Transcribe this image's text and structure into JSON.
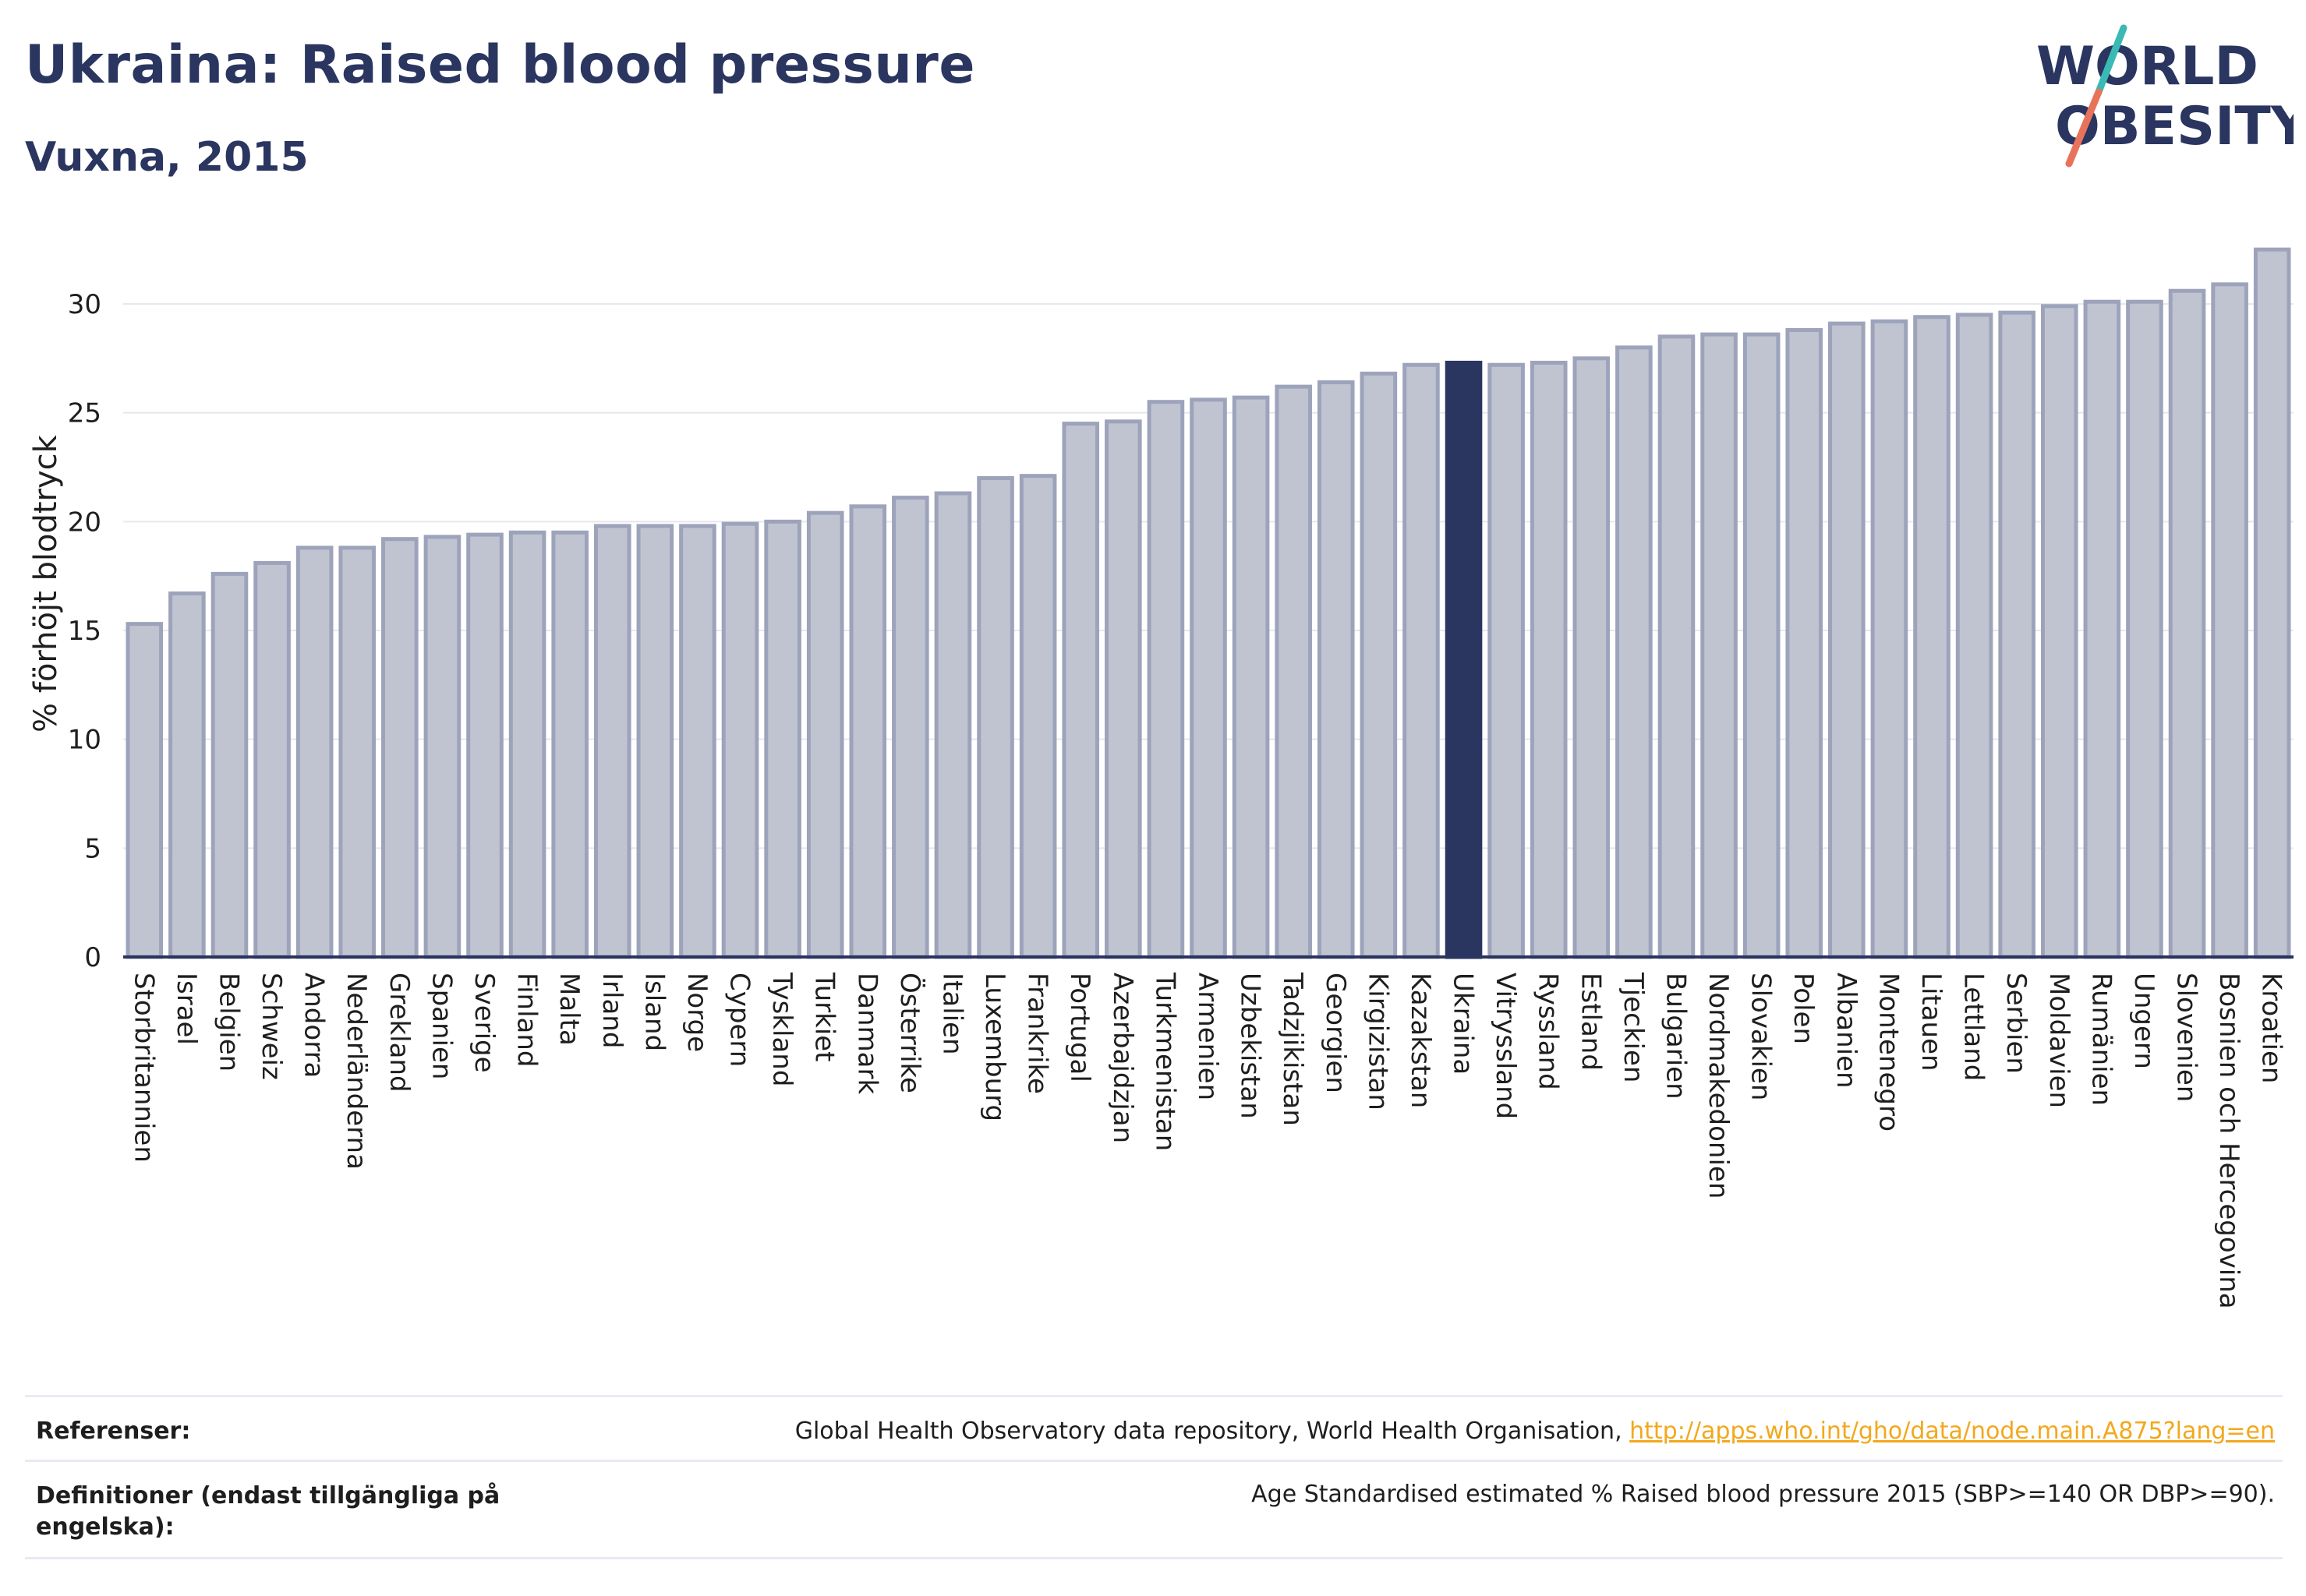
{
  "header": {
    "title": "Ukraina: Raised blood pressure",
    "subtitle": "Vuxna, 2015"
  },
  "logo": {
    "line1": "WORLD",
    "line2": "OBESITY"
  },
  "colors": {
    "bar_fill": "#c0c4d1",
    "bar_edge": "#9da3ba",
    "highlight": "#2a3560",
    "grid": "#e6e8ee",
    "axis": "#2a3560",
    "logo_text": "#2a3560",
    "logo_teal": "#3ab9b5",
    "logo_coral": "#e8735a",
    "link": "#f2a81d"
  },
  "chart_data": {
    "type": "bar",
    "title": "Ukraina: Raised blood pressure",
    "subtitle": "Vuxna, 2015",
    "ylabel": "% förhöjt blodtryck",
    "ylim": [
      0,
      32.7
    ],
    "yticks": [
      0,
      5,
      10,
      15,
      20,
      25,
      30
    ],
    "grid": true,
    "highlight": "Ukraina",
    "categories": [
      "Storbritannien",
      "Israel",
      "Belgien",
      "Schweiz",
      "Andorra",
      "Nederländerna",
      "Grekland",
      "Spanien",
      "Sverige",
      "Finland",
      "Malta",
      "Irland",
      "Island",
      "Norge",
      "Cypern",
      "Tyskland",
      "Turkiet",
      "Danmark",
      "Österrike",
      "Italien",
      "Luxemburg",
      "Frankrike",
      "Portugal",
      "Azerbajdzjan",
      "Turkmenistan",
      "Armenien",
      "Uzbekistan",
      "Tadzjikistan",
      "Georgien",
      "Kirgizistan",
      "Kazakstan",
      "Ukraina",
      "Vitryssland",
      "Ryssland",
      "Estland",
      "Tjeckien",
      "Bulgarien",
      "Nordmakedonien",
      "Slovakien",
      "Polen",
      "Albanien",
      "Montenegro",
      "Litauen",
      "Lettland",
      "Serbien",
      "Moldavien",
      "Rumänien",
      "Ungern",
      "Slovenien",
      "Bosnien och Hercegovina",
      "Kroatien"
    ],
    "values": [
      15.3,
      16.7,
      17.6,
      18.1,
      18.8,
      18.8,
      19.2,
      19.3,
      19.4,
      19.5,
      19.5,
      19.8,
      19.8,
      19.8,
      19.9,
      20.0,
      20.4,
      20.7,
      21.1,
      21.3,
      22.0,
      22.1,
      24.5,
      24.6,
      25.5,
      25.6,
      25.7,
      26.2,
      26.4,
      26.8,
      27.2,
      27.3,
      27.2,
      27.3,
      27.5,
      28.0,
      28.5,
      28.6,
      28.6,
      28.8,
      29.1,
      29.2,
      29.4,
      29.5,
      29.6,
      29.9,
      30.1,
      30.1,
      30.6,
      30.9,
      32.5
    ]
  },
  "footer": {
    "references_label": "Referenser:",
    "references_text": "Global Health Observatory data repository, World Health Organisation, ",
    "references_link": "http://apps.who.int/gho/data/node.main.A875?lang=en",
    "definitions_label_1": "Definitioner (endast tillgängliga på",
    "definitions_label_2": "engelska):",
    "definitions_text": "Age Standardised estimated % Raised blood pressure 2015 (SBP>=140 OR DBP>=90)."
  }
}
